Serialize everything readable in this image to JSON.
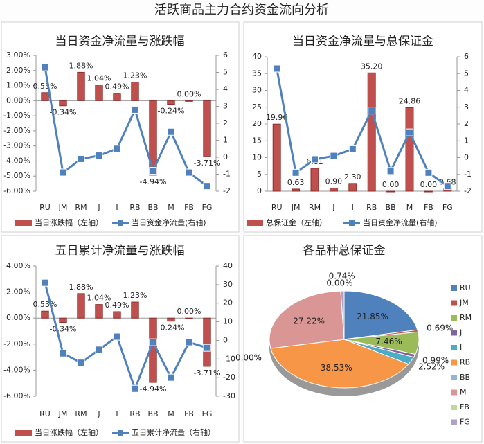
{
  "title": "活跃商品主力合约资金流向分析",
  "chart_data": [
    {
      "type": "bar-line",
      "title": "当日资金净流量与涨跌幅",
      "categories": [
        "RU",
        "JM",
        "RM",
        "J",
        "I",
        "RB",
        "BB",
        "M",
        "FB",
        "FG"
      ],
      "series": [
        {
          "name": "当日涨跌幅（左轴）",
          "color": "#c0504d",
          "values": [
            0.53,
            -0.34,
            1.88,
            1.04,
            0.49,
            1.23,
            -4.94,
            -0.24,
            0.0,
            -3.71
          ],
          "value_labels": [
            "0.53%",
            "-0.34%",
            "1.88%",
            "1.04%",
            "0.49%",
            "1.23%",
            "-4.94%",
            "-0.24%",
            "0.00%",
            "-3.71%"
          ]
        },
        {
          "name": "当日资金净流量(右轴)",
          "color": "#4f81bd",
          "type": "line",
          "axis": "y2",
          "values": [
            5.3,
            -0.9,
            -0.1,
            0.1,
            0.5,
            2.8,
            -0.8,
            1.5,
            -0.9,
            -1.7
          ]
        }
      ],
      "ylim": [
        -6,
        3
      ],
      "yticks": [
        {
          "value": -6,
          "label": "-6.00%"
        },
        {
          "value": -5,
          "label": "-5.00%"
        },
        {
          "value": -4,
          "label": "-4.00%"
        },
        {
          "value": -3,
          "label": "-3.00%"
        },
        {
          "value": -2,
          "label": "-2.00%"
        },
        {
          "value": -1,
          "label": "-1.00%"
        },
        {
          "value": 0,
          "label": "0.00%"
        },
        {
          "value": 1,
          "label": "1.00%"
        },
        {
          "value": 2,
          "label": "2.00%"
        },
        {
          "value": 3,
          "label": "3.00%"
        }
      ],
      "y2lim": [
        -2,
        6
      ],
      "y2ticks": [
        -2,
        -1,
        0,
        1,
        2,
        3,
        4,
        5,
        6
      ],
      "grid": false
    },
    {
      "type": "bar-line",
      "title": "当日资金净流量与总保证金",
      "categories": [
        "RU",
        "JM",
        "RM",
        "J",
        "I",
        "RB",
        "BB",
        "M",
        "FB",
        "FG"
      ],
      "series": [
        {
          "name": "总保证金（左轴）",
          "color": "#c0504d",
          "values": [
            19.96,
            0.63,
            6.81,
            0.9,
            2.3,
            35.2,
            0.0,
            24.86,
            0.0,
            0.68
          ],
          "value_labels": [
            "19.96",
            "0.63",
            "6.81",
            "0.90",
            "2.30",
            "35.20",
            "0.00",
            "24.86",
            "0.00",
            "0.68"
          ]
        },
        {
          "name": "当日资金净流量(右轴)",
          "color": "#4f81bd",
          "type": "line",
          "axis": "y2",
          "values": [
            5.3,
            -0.9,
            -0.1,
            0.1,
            0.5,
            2.8,
            -0.8,
            1.5,
            -0.9,
            -1.7
          ]
        }
      ],
      "ylim": [
        0,
        40
      ],
      "yticks": [
        0,
        5,
        10,
        15,
        20,
        25,
        30,
        35,
        40
      ],
      "y2lim": [
        -2,
        6
      ],
      "y2ticks": [
        -2,
        -1,
        0,
        1,
        2,
        3,
        4,
        5,
        6
      ],
      "grid": false
    },
    {
      "type": "bar-line",
      "title": "五日累计净流量与涨跌幅",
      "categories": [
        "RU",
        "JM",
        "RM",
        "J",
        "I",
        "RB",
        "BB",
        "M",
        "FB",
        "FG"
      ],
      "series": [
        {
          "name": "当日涨跌幅（左轴）",
          "color": "#c0504d",
          "values": [
            0.53,
            -0.34,
            1.88,
            1.04,
            0.49,
            1.23,
            -4.94,
            -0.24,
            0.0,
            -3.71
          ],
          "value_labels": [
            "0.53%",
            "-0.34%",
            "1.88%",
            "1.04%",
            "0.49%",
            "1.23%",
            "-4.94%",
            "-0.24%",
            "0.00%",
            "-3.71%"
          ]
        },
        {
          "name": "五日累计净流量（右轴）",
          "color": "#4f81bd",
          "type": "line",
          "axis": "y2",
          "values": [
            31,
            -7,
            -12,
            -5,
            2,
            -26,
            -1,
            -20,
            -1,
            -4
          ]
        }
      ],
      "ylim": [
        -6,
        4
      ],
      "yticks": [
        {
          "value": -6,
          "label": "-6.00%"
        },
        {
          "value": -4,
          "label": "-4.00%"
        },
        {
          "value": -2,
          "label": "-2.00%"
        },
        {
          "value": 0,
          "label": "0.00%"
        },
        {
          "value": 2,
          "label": "2.00%"
        },
        {
          "value": 4,
          "label": "4.00%"
        }
      ],
      "y2lim": [
        -30,
        40
      ],
      "y2ticks": [
        -30,
        -20,
        -10,
        0,
        10,
        20,
        30,
        40
      ],
      "grid": false
    },
    {
      "type": "pie",
      "title": "各品种总保证金",
      "categories": [
        "RU",
        "JM",
        "RM",
        "J",
        "I",
        "RB",
        "BB",
        "M",
        "FB",
        "FG"
      ],
      "values": [
        21.85,
        0.69,
        7.46,
        0.99,
        2.52,
        38.53,
        0.0,
        27.22,
        0.0,
        0.74
      ],
      "value_labels": [
        "21.85%",
        "0.69%",
        "7.46%",
        "0.99%",
        "2.52%",
        "38.53%",
        "0.00%",
        "27.22%",
        "0.00%",
        "0.74%"
      ],
      "colors": [
        "#4f81bd",
        "#c0504d",
        "#9bbb59",
        "#8064a2",
        "#4bacc6",
        "#f79646",
        "#95b3d7",
        "#d99694",
        "#c3d69b",
        "#b2a1c7"
      ]
    }
  ]
}
